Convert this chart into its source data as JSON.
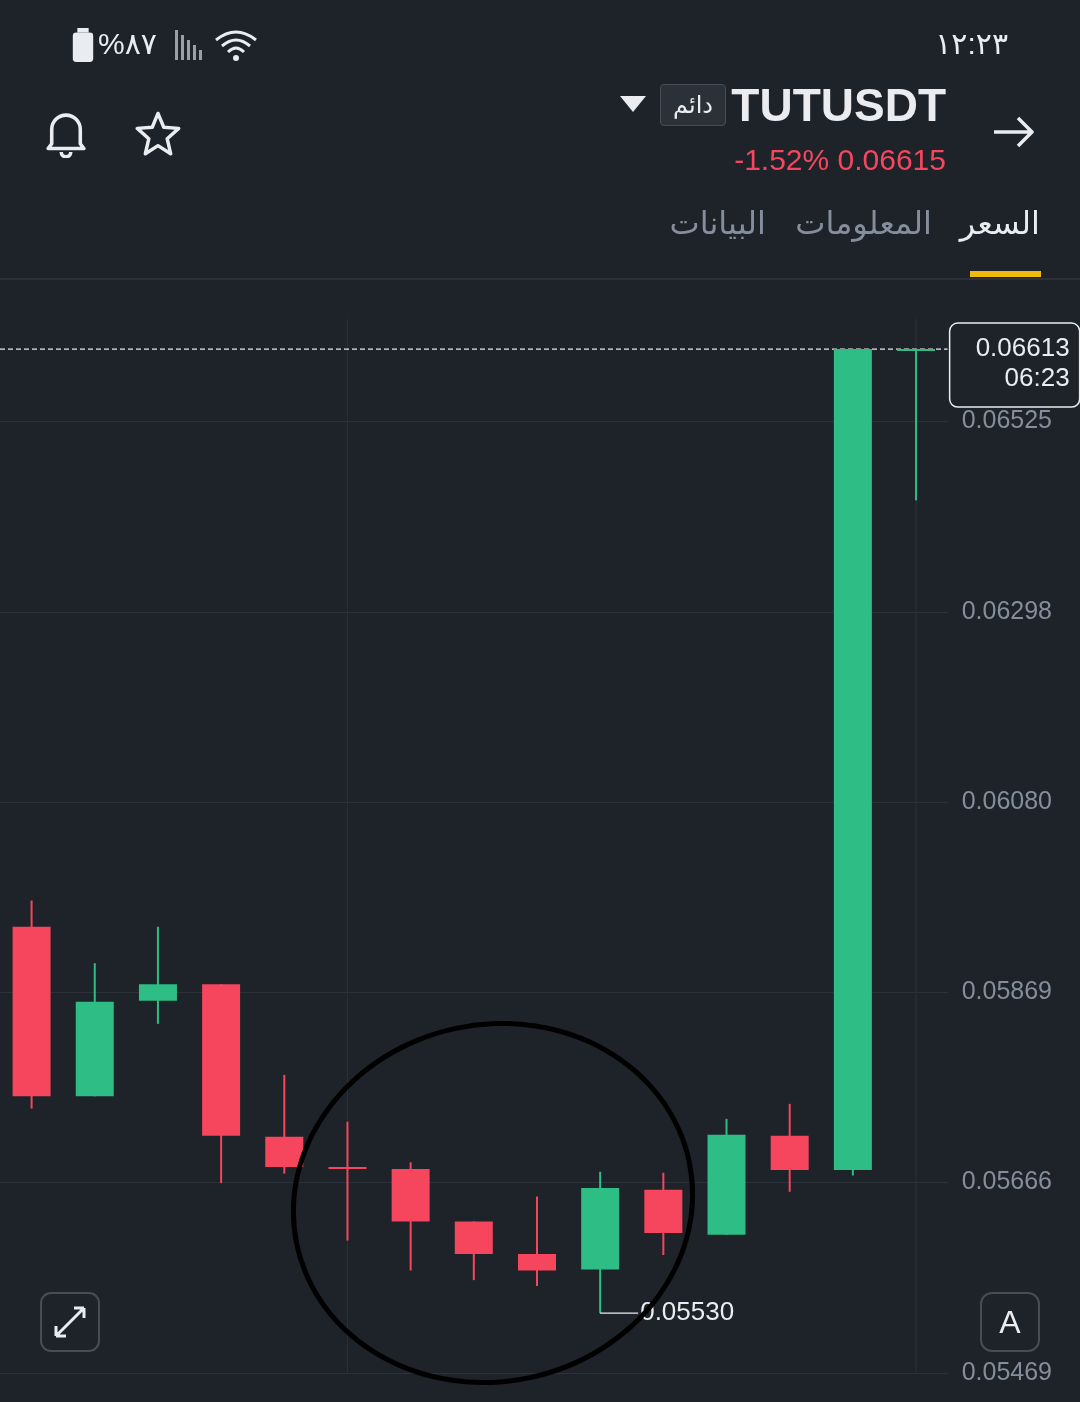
{
  "chart_data": {
    "type": "candlestick",
    "title": "TUTUSDT",
    "subtitle": "-1.52% 0.06615",
    "annotations": [
      "دائم",
      "السعر",
      "المعلومات",
      "البيانات",
      "%٨٧",
      "١٢:٢٣",
      "A",
      "0.05530"
    ],
    "categories": [
      null,
      null,
      null,
      null,
      null,
      null,
      null,
      null,
      null,
      null,
      null,
      null,
      null,
      null,
      null
    ],
    "ohlc": [
      [
        0.05941,
        0.0597,
        0.05744,
        0.05757
      ],
      [
        0.05757,
        0.05901,
        0.05757,
        0.05859
      ],
      [
        0.0586,
        0.05941,
        0.05835,
        0.05878
      ],
      [
        0.05878,
        0.05878,
        0.05665,
        0.05715
      ],
      [
        0.05714,
        0.0578,
        0.05675,
        0.05682
      ],
      [
        0.05682,
        0.0573,
        0.05605,
        0.0568
      ],
      [
        0.0568,
        0.05687,
        0.05574,
        0.05625
      ],
      [
        0.05625,
        0.05625,
        0.05564,
        0.05591
      ],
      [
        0.05591,
        0.05651,
        0.05558,
        0.05574
      ],
      [
        0.05575,
        0.05677,
        0.0553,
        0.0566
      ],
      [
        0.05658,
        0.05676,
        0.0559,
        0.05613
      ],
      [
        0.05611,
        0.05733,
        0.05611,
        0.05716
      ],
      [
        0.05715,
        0.05749,
        0.05656,
        0.05679
      ],
      [
        0.05679,
        0.06613,
        0.05673,
        0.06613
      ],
      [
        0.06613,
        0.06613,
        0.0643,
        0.06613
      ]
    ],
    "ylim": [
      0.05469,
      0.0665
    ],
    "yticks": [
      0.05469,
      0.05666,
      0.05869,
      {
        "value": 0.0608,
        "label": "0.06080"
      },
      0.06298,
      0.06525
    ],
    "log": true,
    "grid": true,
    "tick_labels": "y",
    "ref_lines": [
      {
        "axis": "y",
        "value": 0.06613,
        "label": "0.06613 06:23",
        "line_style": "dashed",
        "color": "#eaecef"
      }
    ]
  }
}
